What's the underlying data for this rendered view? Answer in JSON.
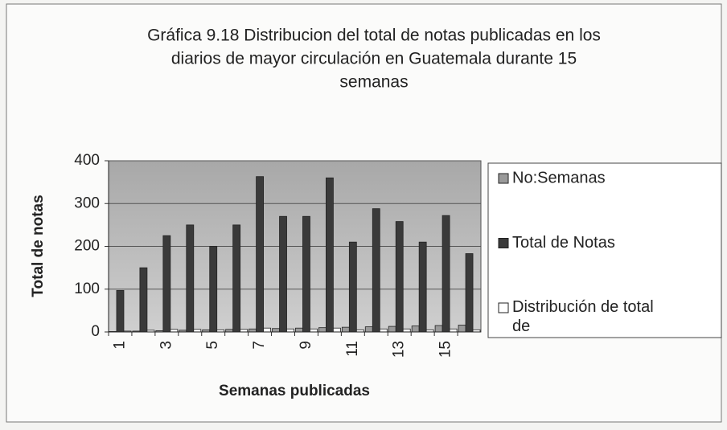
{
  "chart_data": {
    "type": "bar",
    "title": [
      "Gráfica  9.18  Distribucion del total de notas publicadas en los",
      "diarios de mayor circulación en Guatemala durante 15",
      "semanas"
    ],
    "x_label": "Semanas publicadas",
    "y_label": "Total de notas",
    "categories": [
      "1",
      null,
      "3",
      null,
      "5",
      null,
      "7",
      null,
      "9",
      null,
      "11",
      null,
      "13",
      null,
      "15",
      null
    ],
    "series": [
      {
        "name": "No:Semanas",
        "color": "#9a9a9a",
        "values": [
          1,
          2,
          3,
          4,
          5,
          6,
          7,
          8,
          9,
          10,
          11,
          12,
          13,
          14,
          15,
          16
        ]
      },
      {
        "name": "Total de Notas",
        "color": "#3a3a3a",
        "values": [
          97,
          150,
          225,
          250,
          200,
          250,
          363,
          270,
          270,
          360,
          210,
          288,
          258,
          210,
          272,
          183
        ]
      },
      {
        "name": "Distribución de total de",
        "color": "#ffffff",
        "values": [
          2,
          4,
          6,
          6,
          5,
          6,
          9,
          7,
          7,
          9,
          5,
          7,
          7,
          5,
          7,
          5
        ]
      }
    ],
    "ylim": [
      0,
      400
    ],
    "yticks": [
      0,
      100,
      200,
      300,
      400
    ],
    "grid": true,
    "legend": "right"
  }
}
